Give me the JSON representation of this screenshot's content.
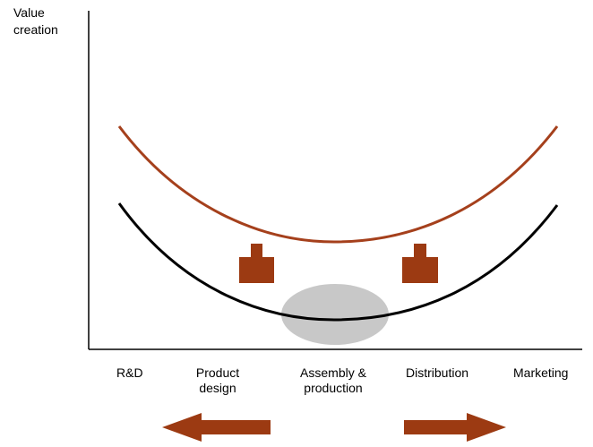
{
  "axis": {
    "y_label_line1": "Value",
    "y_label_line2": "creation"
  },
  "stages": [
    {
      "line1": "R&D",
      "line2": ""
    },
    {
      "line1": "Product",
      "line2": "design"
    },
    {
      "line1": "Assembly &",
      "line2": "production"
    },
    {
      "line1": "Distribution",
      "line2": ""
    },
    {
      "line1": "Marketing",
      "line2": ""
    }
  ],
  "curves": [
    {
      "id": "upper",
      "color": "#a5401c"
    },
    {
      "id": "lower",
      "color": "#000000"
    }
  ],
  "colors": {
    "arrow": "#9c3a12",
    "axis": "#000000",
    "highlight": "#c8c8c8"
  },
  "icons": [
    "up-arrow-icon",
    "left-arrow-icon",
    "right-arrow-icon"
  ]
}
